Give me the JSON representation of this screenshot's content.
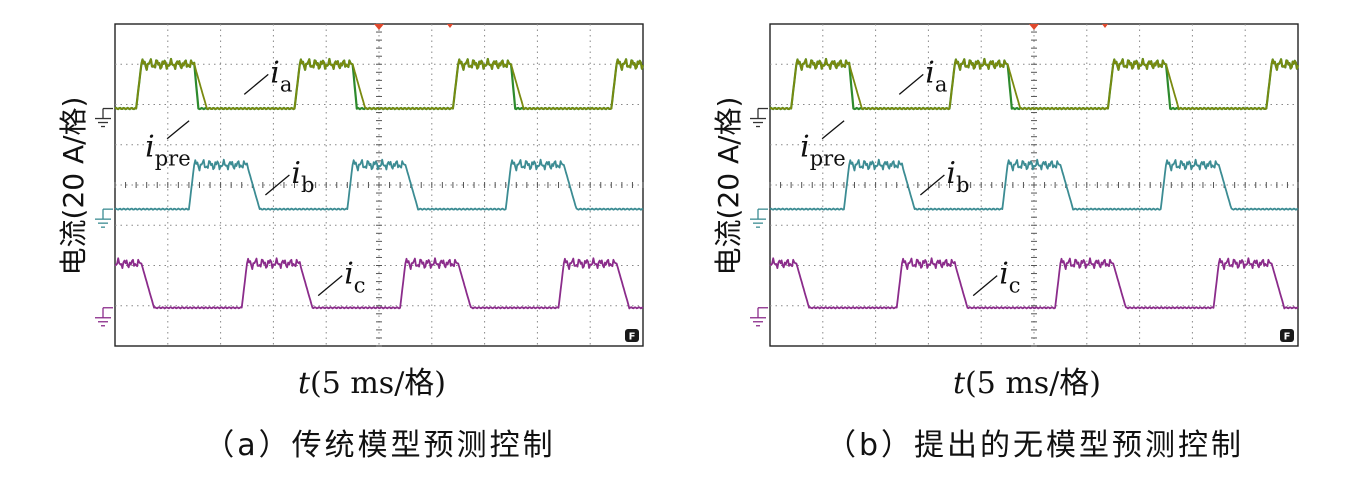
{
  "chart_data": [
    {
      "id": "a",
      "type": "line",
      "caption": "（a）传统模型预测控制",
      "xlabel_var": "t",
      "xlabel_unit": "(5 ms/格)",
      "ylabel": "电流(20 A/格)",
      "x_grid_divisions": 10,
      "y_grid_divisions": 8,
      "xlim_ms": [
        0,
        50
      ],
      "series": [
        {
          "name": "ia",
          "symbol": "i",
          "sub": "a",
          "color": "#7a8a10",
          "baseline_div": 5.9,
          "amplitude_div": 1.1,
          "phase_ms": 2.0,
          "period_ms": 15.0,
          "rise_ms": 0.5,
          "fall_ms": 1.2,
          "high_ms": 5.0
        },
        {
          "name": "ipre",
          "symbol": "i",
          "sub": "pre",
          "color": "#2d8a2d",
          "baseline_div": 5.9,
          "amplitude_div": 1.1,
          "phase_ms": 2.0,
          "period_ms": 15.0,
          "rise_ms": 0.5,
          "fall_ms": 0.4,
          "high_ms": 5.0
        },
        {
          "name": "ib",
          "symbol": "i",
          "sub": "b",
          "color": "#3c8c93",
          "baseline_div": 3.4,
          "amplitude_div": 1.1,
          "phase_ms": 7.0,
          "period_ms": 15.0,
          "rise_ms": 0.5,
          "fall_ms": 1.2,
          "high_ms": 5.0
        },
        {
          "name": "ic",
          "symbol": "i",
          "sub": "c",
          "color": "#8b2c8b",
          "baseline_div": 0.95,
          "amplitude_div": 1.1,
          "phase_ms": -3.0,
          "period_ms": 15.0,
          "rise_ms": 0.5,
          "fall_ms": 1.2,
          "high_ms": 5.0
        }
      ],
      "ground_markers": [
        5.9,
        3.4,
        0.95
      ],
      "labels": [
        {
          "series": "ia",
          "at_ms": 13.0,
          "at_div": 6.6
        },
        {
          "series": "ipre",
          "at_ms": 3.8,
          "at_div": 5.2
        },
        {
          "series": "ib",
          "at_ms": 15.0,
          "at_div": 4.1
        },
        {
          "series": "ic",
          "at_ms": 20.0,
          "at_div": 1.6
        }
      ],
      "corner_badge": "F"
    },
    {
      "id": "b",
      "type": "line",
      "caption": "（b）提出的无模型预测控制",
      "xlabel_var": "t",
      "xlabel_unit": "(5 ms/格)",
      "ylabel": "电流(20 A/格)",
      "x_grid_divisions": 10,
      "y_grid_divisions": 8,
      "xlim_ms": [
        0,
        50
      ],
      "series": [
        {
          "name": "ia",
          "symbol": "i",
          "sub": "a",
          "color": "#7a8a10",
          "baseline_div": 5.9,
          "amplitude_div": 1.1,
          "phase_ms": 2.0,
          "period_ms": 15.0,
          "rise_ms": 0.5,
          "fall_ms": 1.2,
          "high_ms": 5.0
        },
        {
          "name": "ipre",
          "symbol": "i",
          "sub": "pre",
          "color": "#2d8a2d",
          "baseline_div": 5.9,
          "amplitude_div": 1.1,
          "phase_ms": 2.0,
          "period_ms": 15.0,
          "rise_ms": 0.5,
          "fall_ms": 0.4,
          "high_ms": 5.0
        },
        {
          "name": "ib",
          "symbol": "i",
          "sub": "b",
          "color": "#3c8c93",
          "baseline_div": 3.4,
          "amplitude_div": 1.1,
          "phase_ms": 7.0,
          "period_ms": 15.0,
          "rise_ms": 0.5,
          "fall_ms": 1.2,
          "high_ms": 5.0
        },
        {
          "name": "ic",
          "symbol": "i",
          "sub": "c",
          "color": "#8b2c8b",
          "baseline_div": 0.95,
          "amplitude_div": 1.1,
          "phase_ms": -3.0,
          "period_ms": 15.0,
          "rise_ms": 0.5,
          "fall_ms": 1.2,
          "high_ms": 5.0
        }
      ],
      "ground_markers": [
        5.9,
        3.4,
        0.95
      ],
      "labels": [
        {
          "series": "ia",
          "at_ms": 13.0,
          "at_div": 6.6
        },
        {
          "series": "ipre",
          "at_ms": 3.8,
          "at_div": 5.2
        },
        {
          "series": "ib",
          "at_ms": 15.0,
          "at_div": 4.1
        },
        {
          "series": "ic",
          "at_ms": 20.0,
          "at_div": 1.6
        }
      ],
      "corner_badge": "F"
    }
  ]
}
